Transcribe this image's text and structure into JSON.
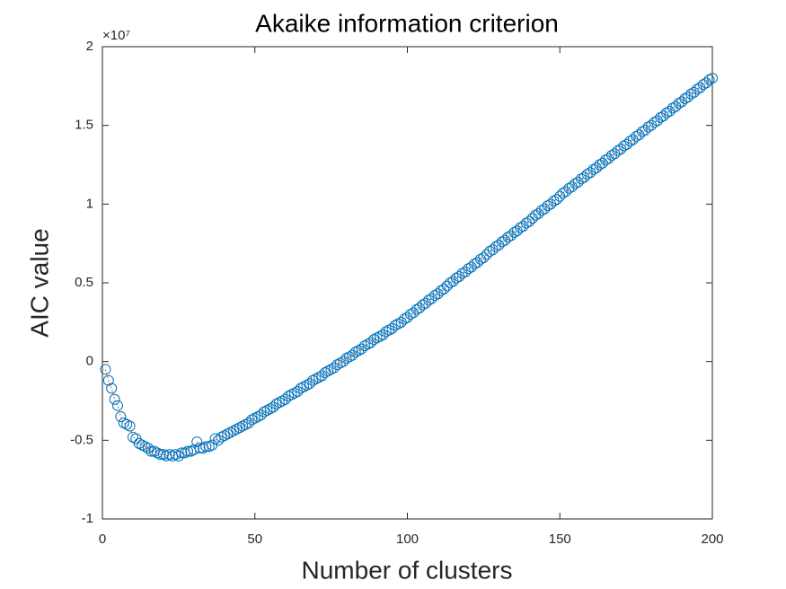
{
  "chart_data": {
    "type": "scatter",
    "title": "Akaike information criterion",
    "x_label": "Number of clusters",
    "y_label": "AIC value",
    "y_exponent_label": "×10⁷",
    "marker_color": "#0072BD",
    "line_color": "#D95319",
    "xlim": [
      0,
      200
    ],
    "xticks": [
      0,
      50,
      100,
      150,
      200
    ],
    "ylim": [
      -1,
      2
    ],
    "yticks": [
      -1,
      -0.5,
      0,
      0.5,
      1,
      1.5,
      2
    ],
    "x": [
      1,
      2,
      3,
      4,
      5,
      6,
      7,
      8,
      9,
      10,
      11,
      12,
      13,
      14,
      15,
      16,
      17,
      18,
      19,
      20,
      21,
      22,
      23,
      24,
      25,
      26,
      27,
      28,
      29,
      30,
      31,
      32,
      33,
      34,
      35,
      36,
      37,
      38,
      39,
      40,
      41,
      42,
      43,
      44,
      45,
      46,
      47,
      48,
      49,
      50,
      51,
      52,
      53,
      54,
      55,
      56,
      57,
      58,
      59,
      60,
      61,
      62,
      63,
      64,
      65,
      66,
      67,
      68,
      69,
      70,
      71,
      72,
      73,
      74,
      75,
      76,
      77,
      78,
      79,
      80,
      81,
      82,
      83,
      84,
      85,
      86,
      87,
      88,
      89,
      90,
      91,
      92,
      93,
      94,
      95,
      96,
      97,
      98,
      99,
      100,
      101,
      102,
      103,
      104,
      105,
      106,
      107,
      108,
      109,
      110,
      111,
      112,
      113,
      114,
      115,
      116,
      117,
      118,
      119,
      120,
      121,
      122,
      123,
      124,
      125,
      126,
      127,
      128,
      129,
      130,
      131,
      132,
      133,
      134,
      135,
      136,
      137,
      138,
      139,
      140,
      141,
      142,
      143,
      144,
      145,
      146,
      147,
      148,
      149,
      150,
      151,
      152,
      153,
      154,
      155,
      156,
      157,
      158,
      159,
      160,
      161,
      162,
      163,
      164,
      165,
      166,
      167,
      168,
      169,
      170,
      171,
      172,
      173,
      174,
      175,
      176,
      177,
      178,
      179,
      180,
      181,
      182,
      183,
      184,
      185,
      186,
      187,
      188,
      189,
      190,
      191,
      192,
      193,
      194,
      195,
      196,
      197,
      198,
      199,
      200
    ],
    "values": [
      -0.05,
      -0.12,
      -0.17,
      -0.24,
      -0.28,
      -0.35,
      -0.39,
      -0.4,
      -0.41,
      -0.48,
      -0.49,
      -0.52,
      -0.53,
      -0.54,
      -0.55,
      -0.57,
      -0.57,
      -0.58,
      -0.59,
      -0.59,
      -0.6,
      -0.59,
      -0.6,
      -0.59,
      -0.6,
      -0.58,
      -0.58,
      -0.57,
      -0.57,
      -0.56,
      -0.51,
      -0.55,
      -0.55,
      -0.54,
      -0.54,
      -0.53,
      -0.49,
      -0.5,
      -0.48,
      -0.47,
      -0.46,
      -0.45,
      -0.44,
      -0.43,
      -0.42,
      -0.41,
      -0.4,
      -0.39,
      -0.37,
      -0.36,
      -0.35,
      -0.34,
      -0.32,
      -0.31,
      -0.3,
      -0.29,
      -0.27,
      -0.26,
      -0.25,
      -0.24,
      -0.22,
      -0.21,
      -0.2,
      -0.19,
      -0.17,
      -0.16,
      -0.15,
      -0.14,
      -0.12,
      -0.11,
      -0.1,
      -0.09,
      -0.07,
      -0.06,
      -0.05,
      -0.04,
      -0.02,
      -0.01,
      0.0,
      0.02,
      0.03,
      0.04,
      0.06,
      0.07,
      0.08,
      0.1,
      0.11,
      0.12,
      0.14,
      0.15,
      0.16,
      0.17,
      0.19,
      0.2,
      0.21,
      0.23,
      0.24,
      0.25,
      0.27,
      0.28,
      0.3,
      0.31,
      0.33,
      0.34,
      0.36,
      0.37,
      0.39,
      0.4,
      0.42,
      0.43,
      0.45,
      0.46,
      0.48,
      0.5,
      0.51,
      0.53,
      0.54,
      0.56,
      0.57,
      0.59,
      0.6,
      0.62,
      0.63,
      0.65,
      0.66,
      0.68,
      0.7,
      0.71,
      0.73,
      0.74,
      0.76,
      0.77,
      0.79,
      0.8,
      0.82,
      0.83,
      0.85,
      0.86,
      0.88,
      0.89,
      0.91,
      0.93,
      0.94,
      0.96,
      0.97,
      0.99,
      1.0,
      1.02,
      1.03,
      1.05,
      1.07,
      1.08,
      1.1,
      1.11,
      1.13,
      1.14,
      1.16,
      1.17,
      1.19,
      1.2,
      1.22,
      1.23,
      1.25,
      1.26,
      1.28,
      1.29,
      1.31,
      1.32,
      1.34,
      1.35,
      1.37,
      1.38,
      1.4,
      1.41,
      1.43,
      1.44,
      1.46,
      1.47,
      1.49,
      1.5,
      1.52,
      1.53,
      1.55,
      1.56,
      1.58,
      1.59,
      1.61,
      1.62,
      1.64,
      1.65,
      1.67,
      1.68,
      1.7,
      1.71,
      1.73,
      1.74,
      1.76,
      1.77,
      1.79,
      1.8
    ]
  }
}
